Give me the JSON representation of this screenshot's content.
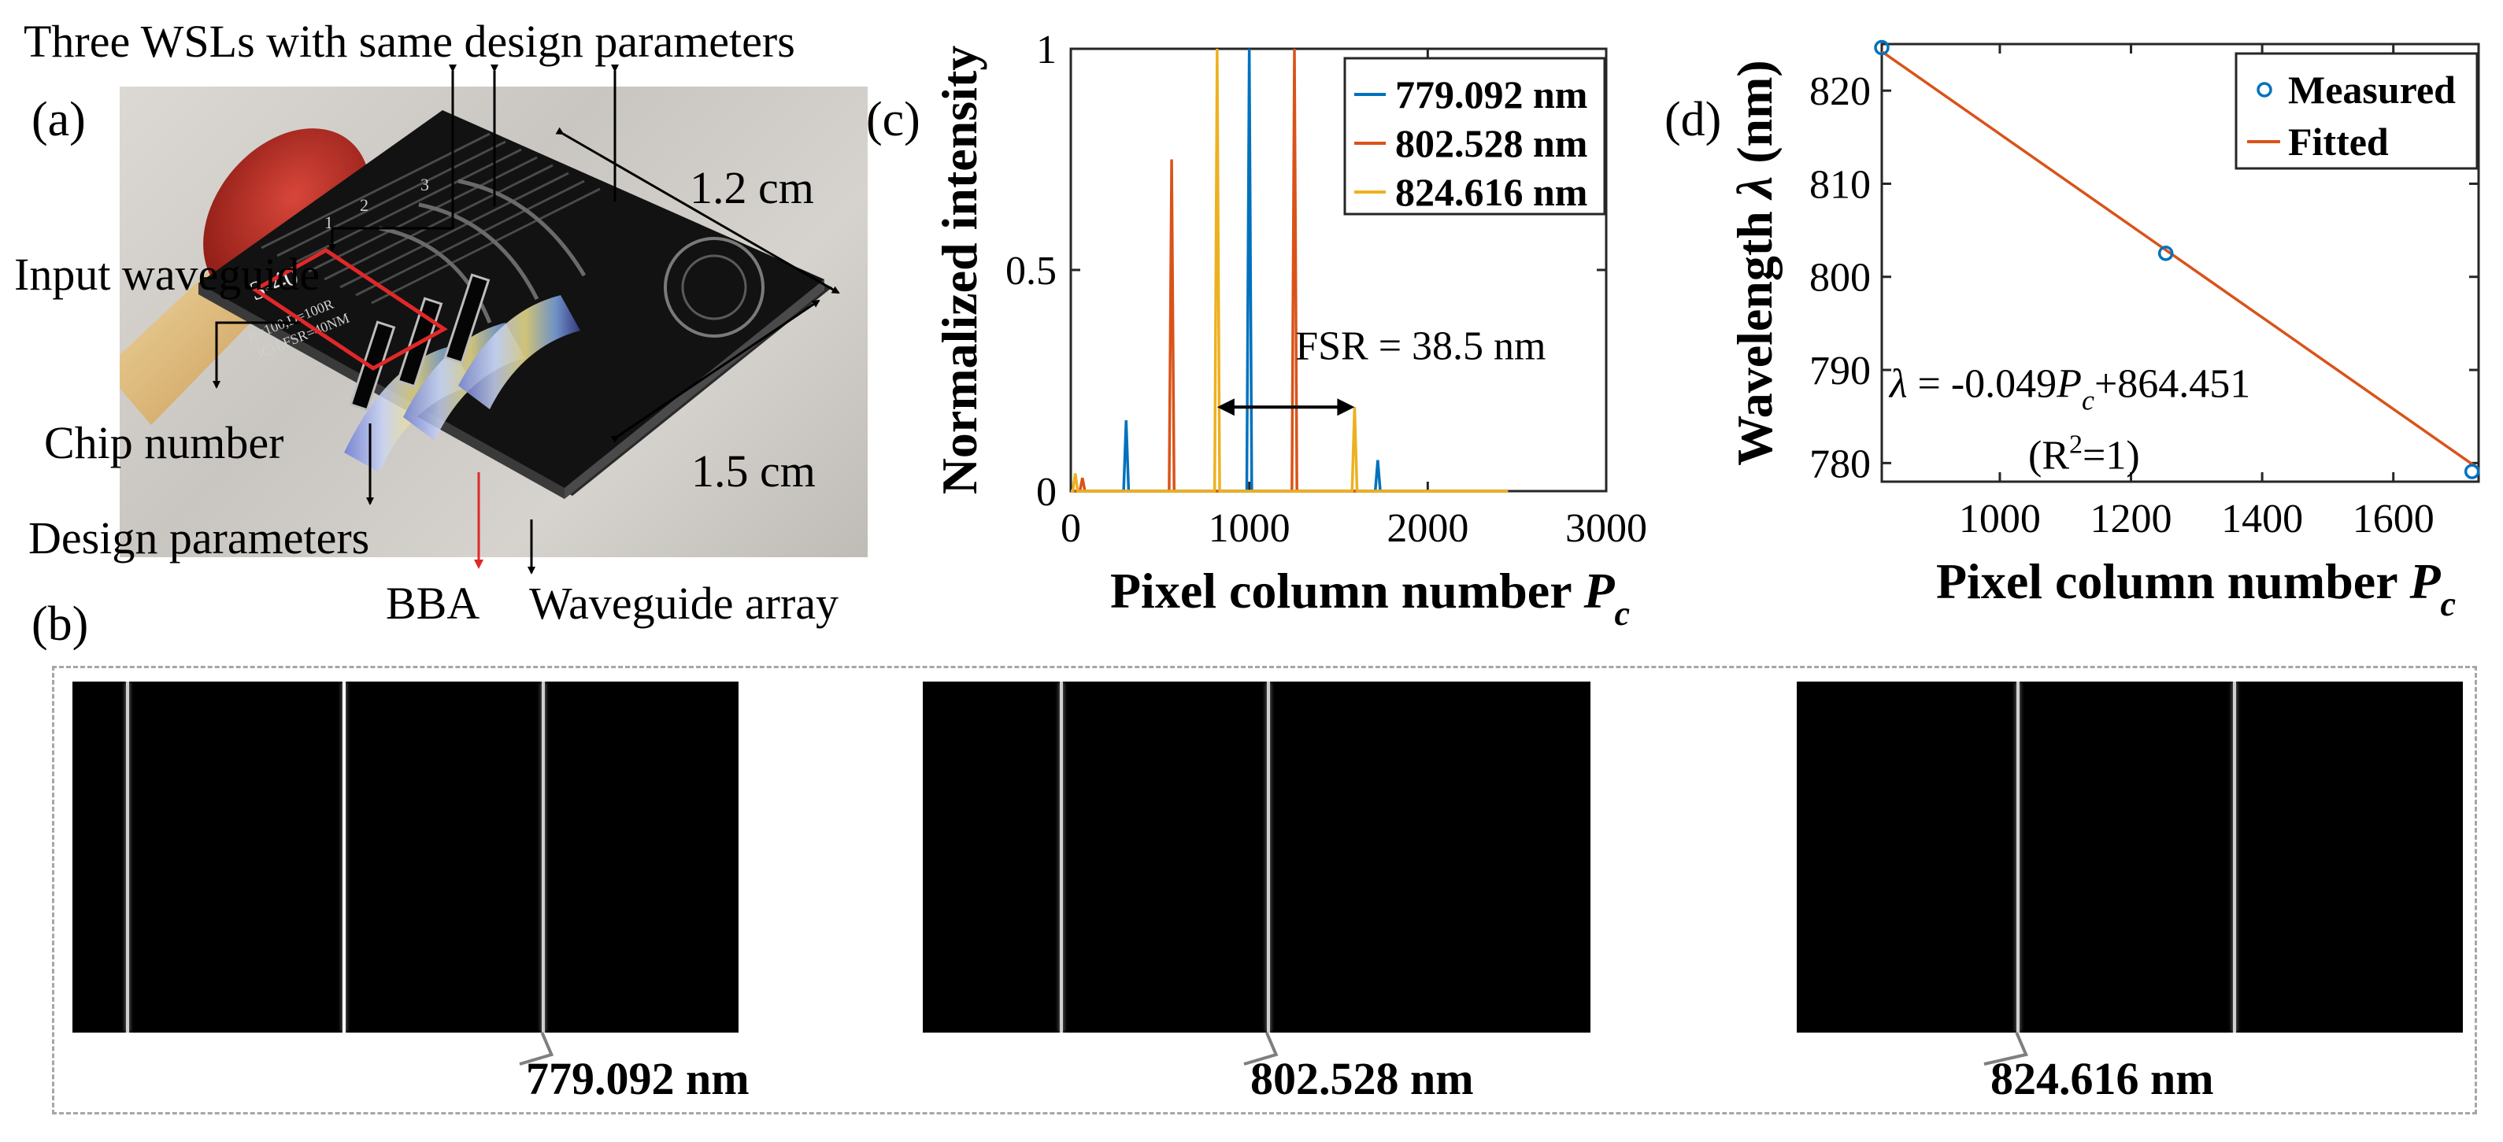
{
  "panel_a": {
    "label": "(a)",
    "annotations": {
      "three_wsls": "Three WSLs with same design parameters",
      "input_waveguide": "Input waveguide",
      "chip_number": "Chip number",
      "design_parameters": "Design parameters",
      "bba": "BBA",
      "waveguide_array": "Waveguide array",
      "width_dim": "1.2 cm",
      "length_dim": "1.5 cm"
    },
    "chip_marks": {
      "chip_id": "3-40",
      "param_line1": "R=100,D=100R",
      "param_line2": "3CH,FSR=40NM",
      "wsl_numbers": [
        "1",
        "2",
        "3"
      ]
    }
  },
  "panel_b": {
    "label": "(b)",
    "images": [
      {
        "caption": "779.092 nm",
        "line_fractions": [
          0.08,
          0.405,
          0.705
        ],
        "highlight_index": 2
      },
      {
        "caption": "802.528 nm",
        "line_fractions": [
          0.205,
          0.515
        ],
        "highlight_index": 1
      },
      {
        "caption": "824.616 nm",
        "line_fractions": [
          0.33,
          0.655
        ],
        "highlight_index": 0
      }
    ]
  },
  "chart_data": [
    {
      "panel": "(c)",
      "type": "line",
      "title": "",
      "xlabel": "Pixel column number",
      "xlabel_var": "P",
      "xlabel_sub": "c",
      "ylabel": "Normalized intensity",
      "xlim": [
        0,
        3000
      ],
      "ylim": [
        0,
        1
      ],
      "xticks": [
        0,
        1000,
        2000,
        3000
      ],
      "yticks": [
        0,
        0.5,
        1
      ],
      "ytick_labels": [
        "0",
        "0.5",
        "1"
      ],
      "legend_position": "top-right",
      "series": [
        {
          "name": "779.092 nm",
          "color": "#0072BD",
          "peaks": [
            [
              310,
              0.16
            ],
            [
              1000,
              1.0
            ],
            [
              1720,
              0.07
            ]
          ]
        },
        {
          "name": "802.528 nm",
          "color": "#D95319",
          "peaks": [
            [
              65,
              0.03
            ],
            [
              565,
              0.75
            ],
            [
              1253,
              1.0
            ]
          ]
        },
        {
          "name": "824.616 nm",
          "color": "#EDB120",
          "peaks": [
            [
              25,
              0.04
            ],
            [
              820,
              1.0
            ],
            [
              1590,
              0.19
            ]
          ]
        }
      ],
      "baseline_end": 2450,
      "annotation": {
        "text": "FSR = 38.5 nm",
        "from_x": 820,
        "to_x": 1590,
        "y": 0.19
      }
    },
    {
      "panel": "(d)",
      "type": "scatter",
      "title": "",
      "xlabel": "Pixel column number",
      "xlabel_var": "P",
      "xlabel_sub": "c",
      "ylabel": "Wavelength",
      "ylabel_symbol": "λ",
      "ylabel_unit": "(nm)",
      "xlim": [
        820,
        1730
      ],
      "ylim": [
        778,
        825
      ],
      "xticks": [
        1000,
        1200,
        1400,
        1600
      ],
      "yticks": [
        780,
        790,
        800,
        810,
        820
      ],
      "legend_position": "top-right",
      "series": [
        {
          "name": "Measured",
          "color": "#0072BD",
          "x": [
            820,
            1253,
            1720
          ],
          "y": [
            824.616,
            802.528,
            779.092
          ],
          "marker": "circle"
        },
        {
          "name": "Fitted",
          "color": "#D95319",
          "x": [
            820,
            1730
          ],
          "y": [
            824.2,
            779.4
          ],
          "marker": "line"
        }
      ],
      "equation": {
        "lhs": "λ",
        "eq": " = -0.049",
        "var": "P",
        "sub": "c",
        "rest": "+864.451"
      },
      "r2": {
        "open": "(R",
        "sup": "2",
        "close": "=1)"
      }
    }
  ]
}
